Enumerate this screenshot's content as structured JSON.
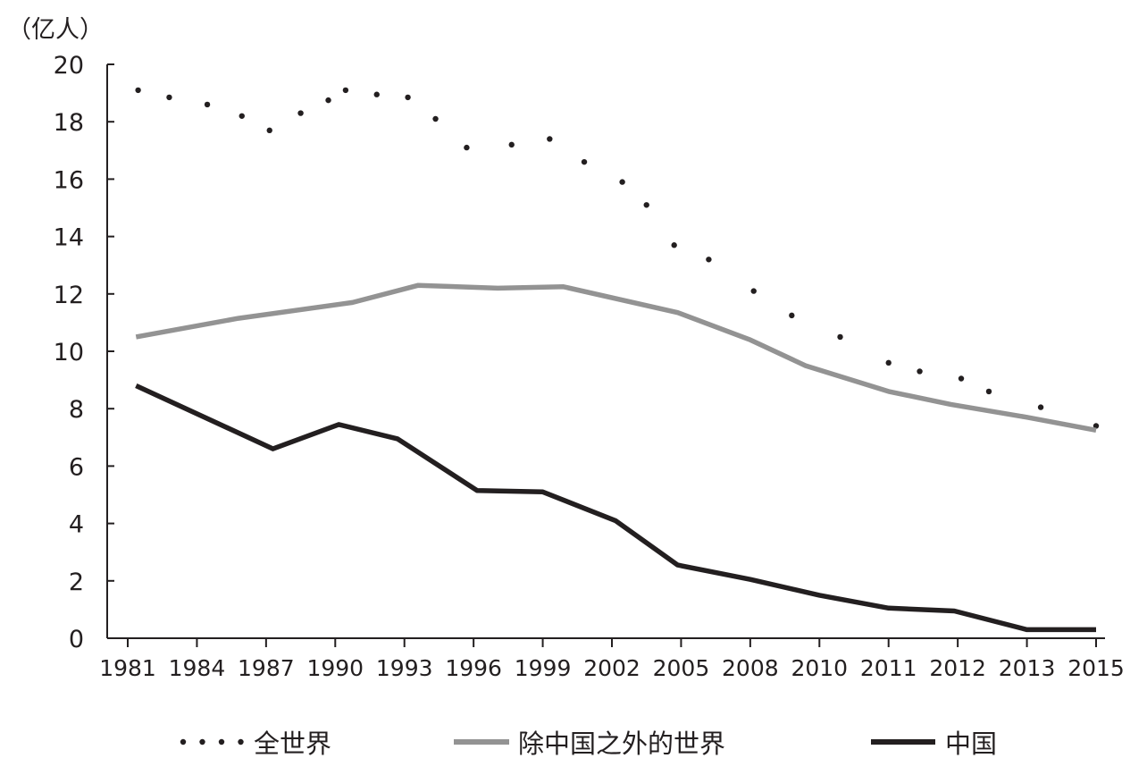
{
  "chart_data": {
    "type": "line",
    "title": "",
    "xlabel": "",
    "ylabel": "（亿人）",
    "ylim": [
      0,
      20
    ],
    "yticks": [
      0,
      2,
      4,
      6,
      8,
      10,
      12,
      14,
      16,
      18,
      20
    ],
    "categories": [
      "1981",
      "1984",
      "1987",
      "1990",
      "1993",
      "1996",
      "1999",
      "2002",
      "2005",
      "2008",
      "2010",
      "2011",
      "2012",
      "2013",
      "2015"
    ],
    "grid": false,
    "legend_position": "bottom",
    "series": [
      {
        "name": "全世界",
        "style": "dotted",
        "color": "#231f20",
        "points": [
          [
            0.15,
            19.1
          ],
          [
            0.6,
            18.85
          ],
          [
            1.15,
            18.6
          ],
          [
            1.65,
            18.2
          ],
          [
            2.05,
            17.7
          ],
          [
            2.5,
            18.3
          ],
          [
            2.9,
            18.75
          ],
          [
            3.15,
            19.1
          ],
          [
            3.6,
            18.95
          ],
          [
            4.05,
            18.85
          ],
          [
            4.45,
            18.1
          ],
          [
            4.9,
            17.1
          ],
          [
            5.55,
            17.2
          ],
          [
            6.1,
            17.4
          ],
          [
            6.6,
            16.6
          ],
          [
            7.15,
            15.9
          ],
          [
            7.5,
            15.1
          ],
          [
            7.9,
            13.7
          ],
          [
            8.4,
            13.2
          ],
          [
            9.05,
            12.1
          ],
          [
            9.6,
            11.25
          ],
          [
            10.3,
            10.5
          ],
          [
            11.0,
            9.6
          ],
          [
            11.45,
            9.3
          ],
          [
            12.05,
            9.05
          ],
          [
            12.45,
            8.6
          ],
          [
            13.2,
            8.05
          ],
          [
            14.0,
            7.4
          ]
        ]
      },
      {
        "name": "除中国之外的世界",
        "style": "solid",
        "color": "#939393",
        "points": [
          [
            0.12,
            10.5
          ],
          [
            1.6,
            11.15
          ],
          [
            3.25,
            11.7
          ],
          [
            4.2,
            12.3
          ],
          [
            5.35,
            12.2
          ],
          [
            6.3,
            12.25
          ],
          [
            7.95,
            11.35
          ],
          [
            9.0,
            10.4
          ],
          [
            9.8,
            9.5
          ],
          [
            11.0,
            8.6
          ],
          [
            11.9,
            8.15
          ],
          [
            13.0,
            7.7
          ],
          [
            14.0,
            7.25
          ]
        ]
      },
      {
        "name": "中国",
        "style": "solid",
        "color": "#231f20",
        "points": [
          [
            0.12,
            8.8
          ],
          [
            2.1,
            6.6
          ],
          [
            3.05,
            7.45
          ],
          [
            3.9,
            6.95
          ],
          [
            5.05,
            5.15
          ],
          [
            6.0,
            5.1
          ],
          [
            7.05,
            4.1
          ],
          [
            7.95,
            2.55
          ],
          [
            9.0,
            2.05
          ],
          [
            10.0,
            1.5
          ],
          [
            11.0,
            1.05
          ],
          [
            11.95,
            0.95
          ],
          [
            13.0,
            0.3
          ],
          [
            14.0,
            0.3
          ]
        ]
      }
    ]
  }
}
